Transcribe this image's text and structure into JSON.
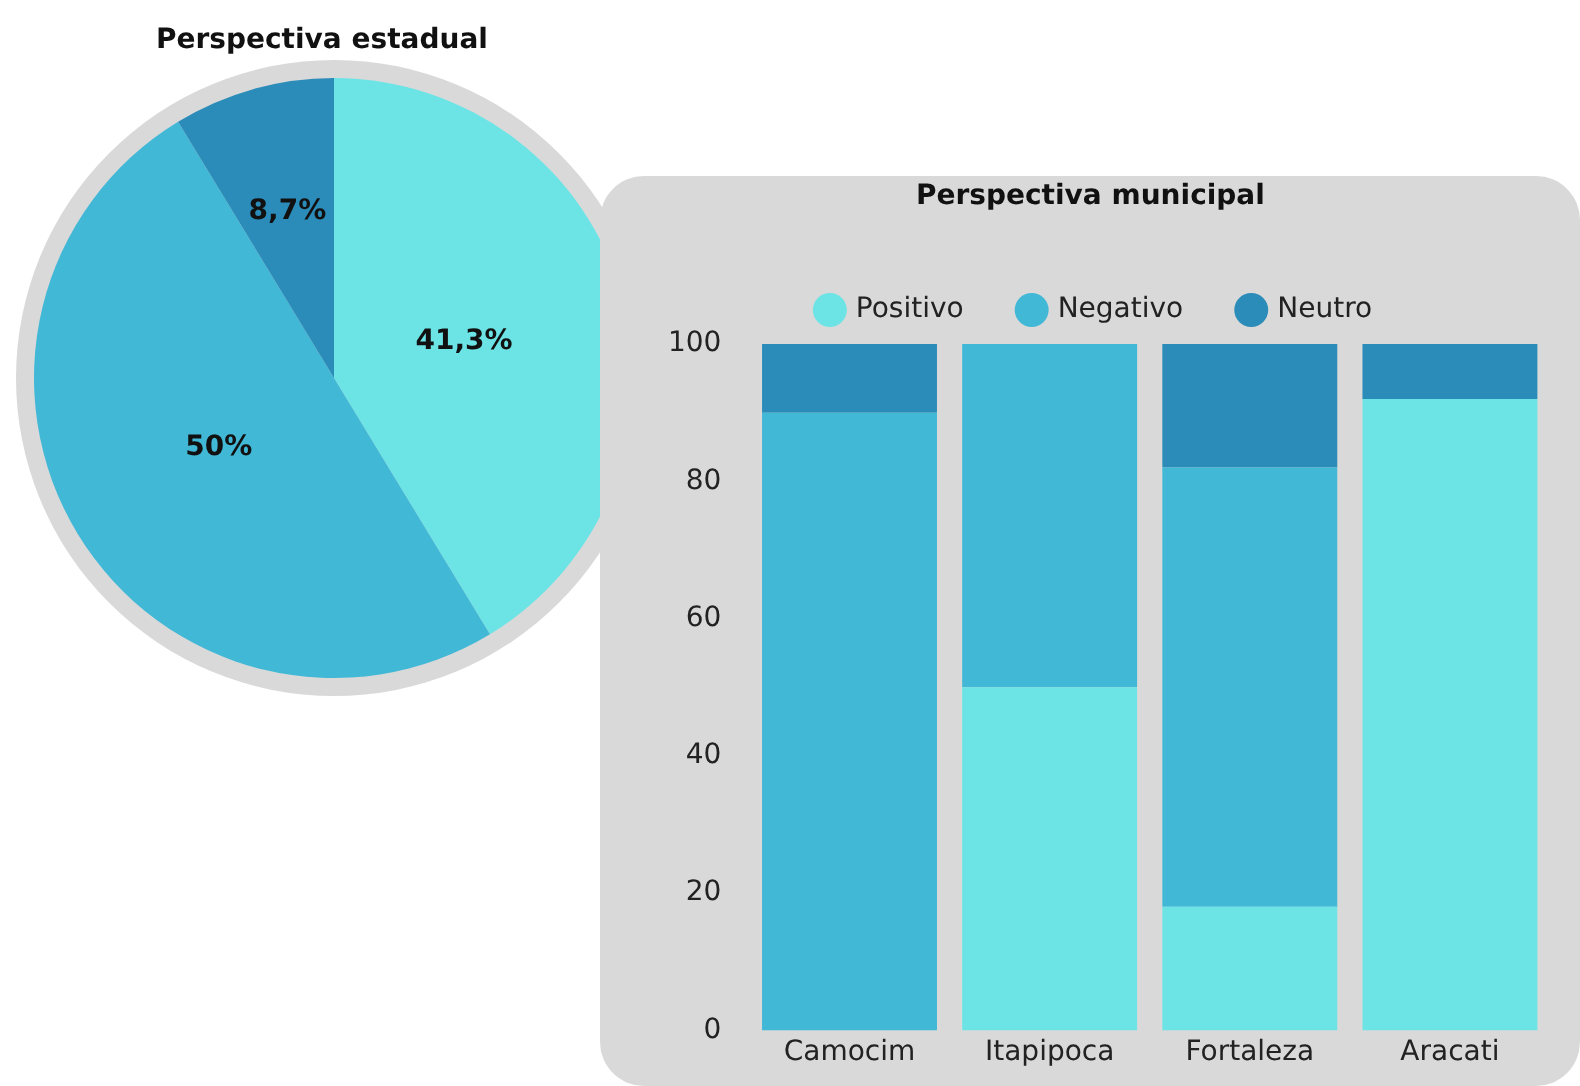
{
  "chart_data": [
    {
      "type": "pie",
      "title": "Perspectiva estadual",
      "categories": [
        null,
        null,
        null
      ],
      "values": [
        41.3,
        50,
        8.7
      ],
      "colors": [
        "#6ce4e6",
        "#41b8d6",
        "#2b8cba"
      ],
      "value_labels": [
        "41,3%",
        "50%",
        "8,7%"
      ]
    },
    {
      "type": "bar",
      "title": "Perspectiva municipal",
      "categories": [
        "Camocim",
        "Itapipoca",
        "Fortaleza",
        "Aracati"
      ],
      "stacked": true,
      "legend": "top",
      "grid": false,
      "ylim": [
        0,
        100
      ],
      "yticks": [
        0,
        20,
        40,
        60,
        80,
        100
      ],
      "series": [
        {
          "name": "Positivo",
          "color": "#6ce4e6",
          "values": [
            0,
            50,
            18,
            92
          ]
        },
        {
          "name": "Negativo",
          "color": "#41b8d6",
          "values": [
            90,
            50,
            64,
            0
          ]
        },
        {
          "name": "Neutro",
          "color": "#2b8cba",
          "values": [
            10,
            0,
            18,
            8
          ]
        }
      ]
    }
  ]
}
